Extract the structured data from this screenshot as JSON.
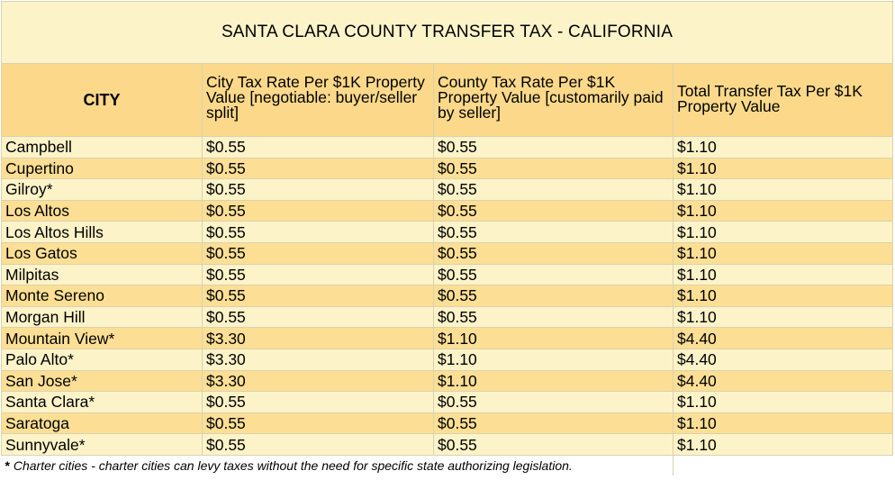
{
  "title": "SANTA CLARA COUNTY TRANSFER TAX - CALIFORNIA",
  "headers": {
    "city": "CITY",
    "city_rate": "City Tax Rate Per $1K Property Value [negotiable: buyer/seller split]",
    "county_rate": "County Tax Rate Per $1K Property Value [customarily paid by seller]",
    "total": "Total Transfer Tax Per $1K Property Value"
  },
  "rows": [
    {
      "city": "Campbell",
      "city_rate": "$0.55",
      "county_rate": "$0.55",
      "total": "$1.10"
    },
    {
      "city": "Cupertino",
      "city_rate": "$0.55",
      "county_rate": "$0.55",
      "total": "$1.10"
    },
    {
      "city": "Gilroy*",
      "city_rate": "$0.55",
      "county_rate": "$0.55",
      "total": "$1.10"
    },
    {
      "city": "Los Altos",
      "city_rate": "$0.55",
      "county_rate": "$0.55",
      "total": "$1.10"
    },
    {
      "city": "Los Altos Hills",
      "city_rate": "$0.55",
      "county_rate": "$0.55",
      "total": "$1.10"
    },
    {
      "city": "Los Gatos",
      "city_rate": "$0.55",
      "county_rate": "$0.55",
      "total": "$1.10"
    },
    {
      "city": "Milpitas",
      "city_rate": "$0.55",
      "county_rate": "$0.55",
      "total": "$1.10"
    },
    {
      "city": "Monte Sereno",
      "city_rate": "$0.55",
      "county_rate": "$0.55",
      "total": "$1.10"
    },
    {
      "city": "Morgan Hill",
      "city_rate": "$0.55",
      "county_rate": "$0.55",
      "total": "$1.10"
    },
    {
      "city": "Mountain View*",
      "city_rate": "$3.30",
      "county_rate": "$1.10",
      "total": "$4.40"
    },
    {
      "city": "Palo Alto*",
      "city_rate": "$3.30",
      "county_rate": "$1.10",
      "total": "$4.40"
    },
    {
      "city": "San Jose*",
      "city_rate": "$3.30",
      "county_rate": "$1.10",
      "total": "$4.40"
    },
    {
      "city": "Santa Clara*",
      "city_rate": "$0.55",
      "county_rate": "$0.55",
      "total": "$1.10"
    },
    {
      "city": "Saratoga",
      "city_rate": "$0.55",
      "county_rate": "$0.55",
      "total": "$1.10"
    },
    {
      "city": "Sunnyvale*",
      "city_rate": "$0.55",
      "county_rate": "$0.55",
      "total": "$1.10"
    }
  ],
  "footnote": {
    "marker": "*",
    "text": " Charter cities - charter cities can levy taxes without the need for specific state authorizing legislation."
  },
  "colors": {
    "title_bg": "#fdf3c8",
    "header_bg": "#fcd98a",
    "row_light": "#fdf3c8",
    "row_dark": "#fcdf95",
    "border": "#d9d2b0"
  }
}
